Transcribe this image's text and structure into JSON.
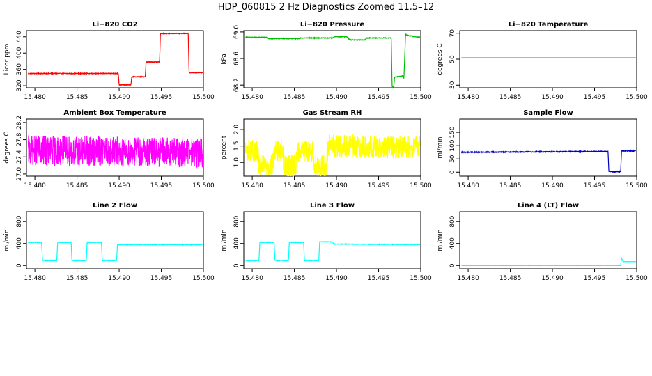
{
  "figure": {
    "title": "HDP_060815  2 Hz Diagnostics Zoomed 11.5–12"
  },
  "chart_data": [
    {
      "id": "co2",
      "type": "line",
      "title": "Li−820 CO2",
      "xlabel": "",
      "ylabel": "Licor ppm",
      "color": "#ff0000",
      "xlim": [
        15.479,
        15.5
      ],
      "ylim": [
        315,
        455
      ],
      "xticks": [
        15.48,
        15.485,
        15.49,
        15.495,
        15.5
      ],
      "xtick_labels": [
        "15.480",
        "15.485",
        "15.490",
        "15.495",
        "15.500"
      ],
      "yticks": [
        320,
        360,
        400,
        440
      ],
      "ytick_labels": [
        "320",
        "360",
        "400",
        "440"
      ],
      "noise": 0.8,
      "series": [
        {
          "x": [
            15.4792,
            15.4899,
            15.49,
            15.4914,
            15.4915,
            15.4931,
            15.4932,
            15.4948,
            15.4949,
            15.4982,
            15.4983,
            15.4999
          ],
          "values": [
            350,
            350,
            322,
            322,
            342,
            342,
            378,
            378,
            448,
            448,
            352,
            352
          ]
        }
      ]
    },
    {
      "id": "pressure",
      "type": "line",
      "title": "Li−820 Pressure",
      "xlabel": "",
      "ylabel": "kPa",
      "color": "#00c000",
      "xlim": [
        15.479,
        15.5
      ],
      "ylim": [
        68.16,
        69.02
      ],
      "xticks": [
        15.48,
        15.485,
        15.49,
        15.495,
        15.5
      ],
      "xtick_labels": [
        "15.480",
        "15.485",
        "15.490",
        "15.495",
        "15.500"
      ],
      "yticks": [
        68.2,
        68.6,
        69.0
      ],
      "ytick_labels": [
        "68.2",
        "68.6",
        "69.0"
      ],
      "noise": 0.005,
      "series": [
        {
          "x": [
            15.4792,
            15.4818,
            15.4819,
            15.4855,
            15.4858,
            15.4895,
            15.4898,
            15.4912,
            15.4916,
            15.4934,
            15.4936,
            15.4965,
            15.4966,
            15.4968,
            15.4969,
            15.4979,
            15.498,
            15.4982,
            15.4983,
            15.4999
          ],
          "values": [
            68.92,
            68.92,
            68.9,
            68.9,
            68.91,
            68.91,
            68.93,
            68.93,
            68.88,
            68.88,
            68.91,
            68.91,
            68.18,
            68.18,
            68.32,
            68.34,
            68.3,
            68.97,
            68.95,
            68.92
          ]
        }
      ]
    },
    {
      "id": "licor-temp",
      "type": "line",
      "title": "Li−820 Temperature",
      "xlabel": "",
      "ylabel": "degrees C",
      "color": "#ff00ff",
      "xlim": [
        15.479,
        15.5
      ],
      "ylim": [
        28,
        72
      ],
      "xticks": [
        15.48,
        15.485,
        15.49,
        15.495,
        15.5
      ],
      "xtick_labels": [
        "15.480",
        "15.485",
        "15.490",
        "15.495",
        "15.500"
      ],
      "yticks": [
        30,
        50,
        70
      ],
      "ytick_labels": [
        "30",
        "50",
        "70"
      ],
      "noise": 0,
      "series": [
        {
          "x": [
            15.4792,
            15.4999
          ],
          "values": [
            51,
            51
          ]
        }
      ]
    },
    {
      "id": "box-temp",
      "type": "line",
      "title": "Ambient Box Temperature",
      "xlabel": "",
      "ylabel": "degrees C",
      "color": "#ff00ff",
      "xlim": [
        15.479,
        15.5
      ],
      "ylim": [
        26.95,
        28.28
      ],
      "xticks": [
        15.48,
        15.485,
        15.49,
        15.495,
        15.5
      ],
      "xtick_labels": [
        "15.480",
        "15.485",
        "15.490",
        "15.495",
        "15.500"
      ],
      "yticks": [
        27.0,
        27.4,
        27.8,
        28.2
      ],
      "ytick_labels": [
        "27.0",
        "27.4",
        "27.8",
        "28.2"
      ],
      "noise": 0.35,
      "series": [
        {
          "x": [
            15.4792,
            15.4999
          ],
          "values": [
            27.55,
            27.5
          ]
        }
      ]
    },
    {
      "id": "rh",
      "type": "line",
      "title": "Gas Stream RH",
      "xlabel": "",
      "ylabel": "percent",
      "color": "#ffff00",
      "xlim": [
        15.479,
        15.5
      ],
      "ylim": [
        0.58,
        2.32
      ],
      "xticks": [
        15.48,
        15.485,
        15.49,
        15.495,
        15.5
      ],
      "xtick_labels": [
        "15.480",
        "15.485",
        "15.490",
        "15.495",
        "15.500"
      ],
      "yticks": [
        1.0,
        1.5,
        2.0
      ],
      "ytick_labels": [
        "1.0",
        "1.5",
        "2.0"
      ],
      "noise": 0.35,
      "series": [
        {
          "x": [
            15.4792,
            15.4806,
            15.4808,
            15.4824,
            15.4826,
            15.4836,
            15.4838,
            15.4852,
            15.4854,
            15.4872,
            15.4874,
            15.4888,
            15.489,
            15.4999
          ],
          "values": [
            1.35,
            1.35,
            0.9,
            0.9,
            1.35,
            1.35,
            0.9,
            0.9,
            1.35,
            1.35,
            0.9,
            0.9,
            1.5,
            1.45
          ]
        }
      ]
    },
    {
      "id": "sample-flow",
      "type": "line",
      "title": "Sample Flow",
      "xlabel": "",
      "ylabel": "ml/min",
      "color": "#0000c0",
      "xlim": [
        15.479,
        15.5
      ],
      "ylim": [
        -15,
        200
      ],
      "xticks": [
        15.48,
        15.485,
        15.49,
        15.495,
        15.5
      ],
      "xtick_labels": [
        "15.480",
        "15.485",
        "15.490",
        "15.495",
        "15.500"
      ],
      "yticks": [
        0,
        50,
        100,
        150
      ],
      "ytick_labels": [
        "0",
        "50",
        "100",
        "150"
      ],
      "noise": 1.5,
      "series": [
        {
          "x": [
            15.4792,
            15.4966,
            15.4967,
            15.4981,
            15.4982,
            15.4999
          ],
          "values": [
            75,
            78,
            2,
            2,
            80,
            80
          ]
        }
      ]
    },
    {
      "id": "line2",
      "type": "line",
      "title": "Line 2 Flow",
      "xlabel": "",
      "ylabel": "ml/min",
      "color": "#00ffff",
      "xlim": [
        15.479,
        15.5
      ],
      "ylim": [
        -60,
        980
      ],
      "xticks": [
        15.48,
        15.485,
        15.49,
        15.495,
        15.5
      ],
      "xtick_labels": [
        "15.480",
        "15.485",
        "15.490",
        "15.495",
        "15.500"
      ],
      "yticks": [
        0,
        400,
        800
      ],
      "ytick_labels": [
        "0",
        "400",
        "800"
      ],
      "noise": 5,
      "series": [
        {
          "x": [
            15.4792,
            15.4808,
            15.4809,
            15.4826,
            15.4827,
            15.4843,
            15.4844,
            15.4861,
            15.4862,
            15.4879,
            15.488,
            15.4897,
            15.4898,
            15.4999
          ],
          "values": [
            420,
            420,
            90,
            90,
            420,
            420,
            90,
            90,
            420,
            420,
            90,
            90,
            380,
            380
          ]
        }
      ]
    },
    {
      "id": "line3",
      "type": "line",
      "title": "Line 3 Flow",
      "xlabel": "",
      "ylabel": "ml/min",
      "color": "#00ffff",
      "xlim": [
        15.479,
        15.5
      ],
      "ylim": [
        -60,
        980
      ],
      "xticks": [
        15.48,
        15.485,
        15.49,
        15.495,
        15.5
      ],
      "xtick_labels": [
        "15.480",
        "15.485",
        "15.490",
        "15.495",
        "15.500"
      ],
      "yticks": [
        0,
        400,
        800
      ],
      "ytick_labels": [
        "0",
        "400",
        "800"
      ],
      "noise": 5,
      "series": [
        {
          "x": [
            15.4792,
            15.4808,
            15.4809,
            15.4826,
            15.4827,
            15.4843,
            15.4844,
            15.4861,
            15.4862,
            15.4879,
            15.488,
            15.4895,
            15.4897,
            15.4999
          ],
          "values": [
            90,
            90,
            420,
            420,
            90,
            90,
            420,
            420,
            90,
            90,
            430,
            430,
            390,
            380
          ]
        }
      ]
    },
    {
      "id": "line4",
      "type": "line",
      "title": "Line 4 (LT) Flow",
      "xlabel": "",
      "ylabel": "ml/min",
      "color": "#00ffff",
      "xlim": [
        15.479,
        15.5
      ],
      "ylim": [
        -60,
        980
      ],
      "xticks": [
        15.48,
        15.485,
        15.49,
        15.495,
        15.5
      ],
      "xtick_labels": [
        "15.480",
        "15.485",
        "15.490",
        "15.495",
        "15.500"
      ],
      "yticks": [
        0,
        400,
        800
      ],
      "ytick_labels": [
        "0",
        "400",
        "800"
      ],
      "noise": 2,
      "series": [
        {
          "x": [
            15.4792,
            15.4981,
            15.4982,
            15.4983,
            15.4985,
            15.4999
          ],
          "values": [
            0,
            0,
            140,
            90,
            70,
            70
          ]
        }
      ]
    }
  ]
}
